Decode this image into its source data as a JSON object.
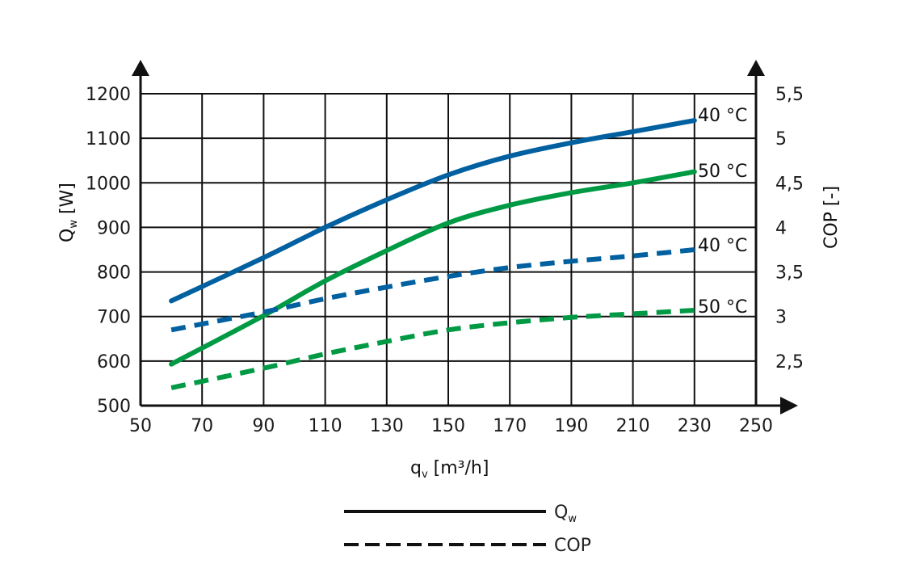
{
  "chart_data": {
    "type": "line",
    "x_axis": {
      "label_main": "q",
      "label_sub": "v",
      "label_unit": " [m³/h]",
      "range": [
        50,
        250
      ],
      "ticks": [
        "50",
        "70",
        "90",
        "110",
        "130",
        "150",
        "170",
        "190",
        "210",
        "230",
        "250"
      ]
    },
    "y_left_axis": {
      "label_main": "Q",
      "label_sub": "w",
      "label_unit": " [W]",
      "range": [
        500,
        1200
      ],
      "ticks": [
        "500",
        "600",
        "700",
        "800",
        "900",
        "1000",
        "1100",
        "1200"
      ]
    },
    "y_right_axis": {
      "label": "COP [-]",
      "range": [
        2,
        5.5
      ],
      "ticks": [
        "2,5",
        "3",
        "3,5",
        "4",
        "4,5",
        "5",
        "5,5"
      ]
    },
    "grid": true,
    "series": [
      {
        "id": "qw-40",
        "axis": "left",
        "style": "solid",
        "color": "#0060a0",
        "label": "40 °C",
        "x": [
          60,
          90,
          110,
          130,
          150,
          170,
          190,
          210,
          230
        ],
        "y": [
          735,
          832,
          900,
          962,
          1018,
          1060,
          1090,
          1115,
          1140
        ]
      },
      {
        "id": "qw-50",
        "axis": "left",
        "style": "solid",
        "color": "#009a44",
        "label": "50 °C",
        "x": [
          60,
          90,
          110,
          130,
          150,
          170,
          190,
          210,
          230
        ],
        "y": [
          593,
          702,
          780,
          848,
          910,
          950,
          978,
          1000,
          1025
        ]
      },
      {
        "id": "cop-40",
        "axis": "right",
        "style": "dashed",
        "color": "#0060a0",
        "label": "40 °C",
        "x": [
          60,
          90,
          110,
          130,
          150,
          170,
          190,
          210,
          230
        ],
        "y": [
          2.85,
          3.05,
          3.2,
          3.33,
          3.45,
          3.55,
          3.62,
          3.68,
          3.75
        ]
      },
      {
        "id": "cop-50",
        "axis": "right",
        "style": "dashed",
        "color": "#009a44",
        "label": "50 °C",
        "x": [
          60,
          90,
          110,
          130,
          150,
          170,
          190,
          210,
          230
        ],
        "y": [
          2.2,
          2.42,
          2.58,
          2.72,
          2.85,
          2.93,
          2.99,
          3.03,
          3.07
        ]
      }
    ],
    "legend": {
      "placement": "bottom-center",
      "entries": [
        {
          "style": "solid",
          "label_main": "Q",
          "label_sub": "w"
        },
        {
          "style": "dashed",
          "label": "COP"
        }
      ]
    }
  }
}
